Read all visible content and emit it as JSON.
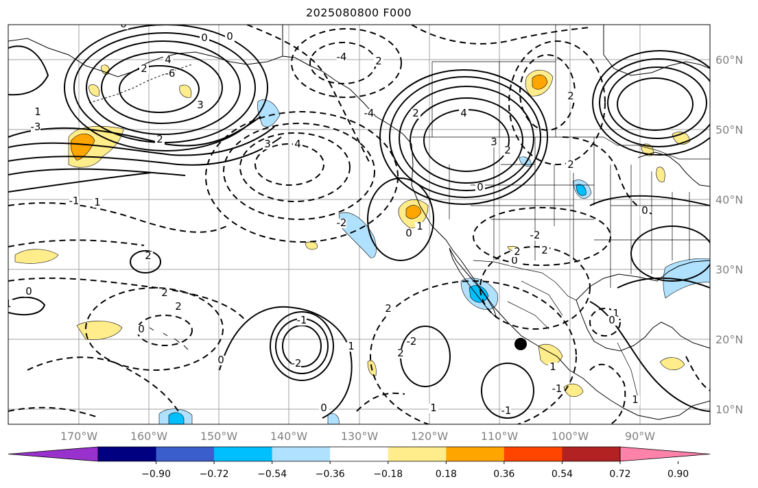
{
  "title": "2025080800 F000",
  "map": {
    "lon_range": [
      180,
      80
    ],
    "lat_range": [
      8,
      65
    ],
    "lat_labels": [
      "60°N",
      "50°N",
      "40°N",
      "30°N",
      "20°N",
      "10°N"
    ],
    "lon_labels": [
      "170°W",
      "160°W",
      "150°W",
      "140°W",
      "130°W",
      "120°W",
      "110°W",
      "100°W",
      "90°W"
    ],
    "contour_labels": [
      "0",
      "0",
      "2",
      "4",
      "-6",
      "3",
      "1",
      "-3",
      "-1",
      "1",
      "2",
      "3",
      "4",
      "0",
      "-4",
      "2",
      "-4",
      "2",
      "4",
      "3",
      "2",
      "0",
      "2",
      "2",
      "-2",
      "0",
      "1",
      "0",
      "-2",
      "2",
      "2",
      "2",
      "0",
      "1",
      "0",
      "-1",
      "-2",
      "0",
      "2",
      "2",
      "-2",
      "1",
      "0",
      "1",
      "-1",
      "1",
      "-1",
      "1",
      "0",
      "2",
      "2",
      "1",
      "0"
    ],
    "marker": "storm-center-dot"
  },
  "colorbar": {
    "colors": [
      "#9932cc",
      "#000080",
      "#3a5fcd",
      "#00bfff",
      "#b0e2ff",
      "#ffffff",
      "#ffec8b",
      "#ffa500",
      "#ff4500",
      "#b22222",
      "#ff82ab"
    ],
    "tick_labels": [
      "−0.90",
      "−0.72",
      "−0.54",
      "−0.36",
      "−0.18",
      "0.18",
      "0.36",
      "0.54",
      "0.72",
      "0.90"
    ]
  },
  "colors": {
    "contour": "#000000",
    "grid": "#a0a0a0",
    "coast": "#000000",
    "positive_light": "#ffec8b",
    "positive_mid": "#ffa500",
    "negative_light": "#b0e2ff",
    "negative_mid": "#00bfff"
  }
}
